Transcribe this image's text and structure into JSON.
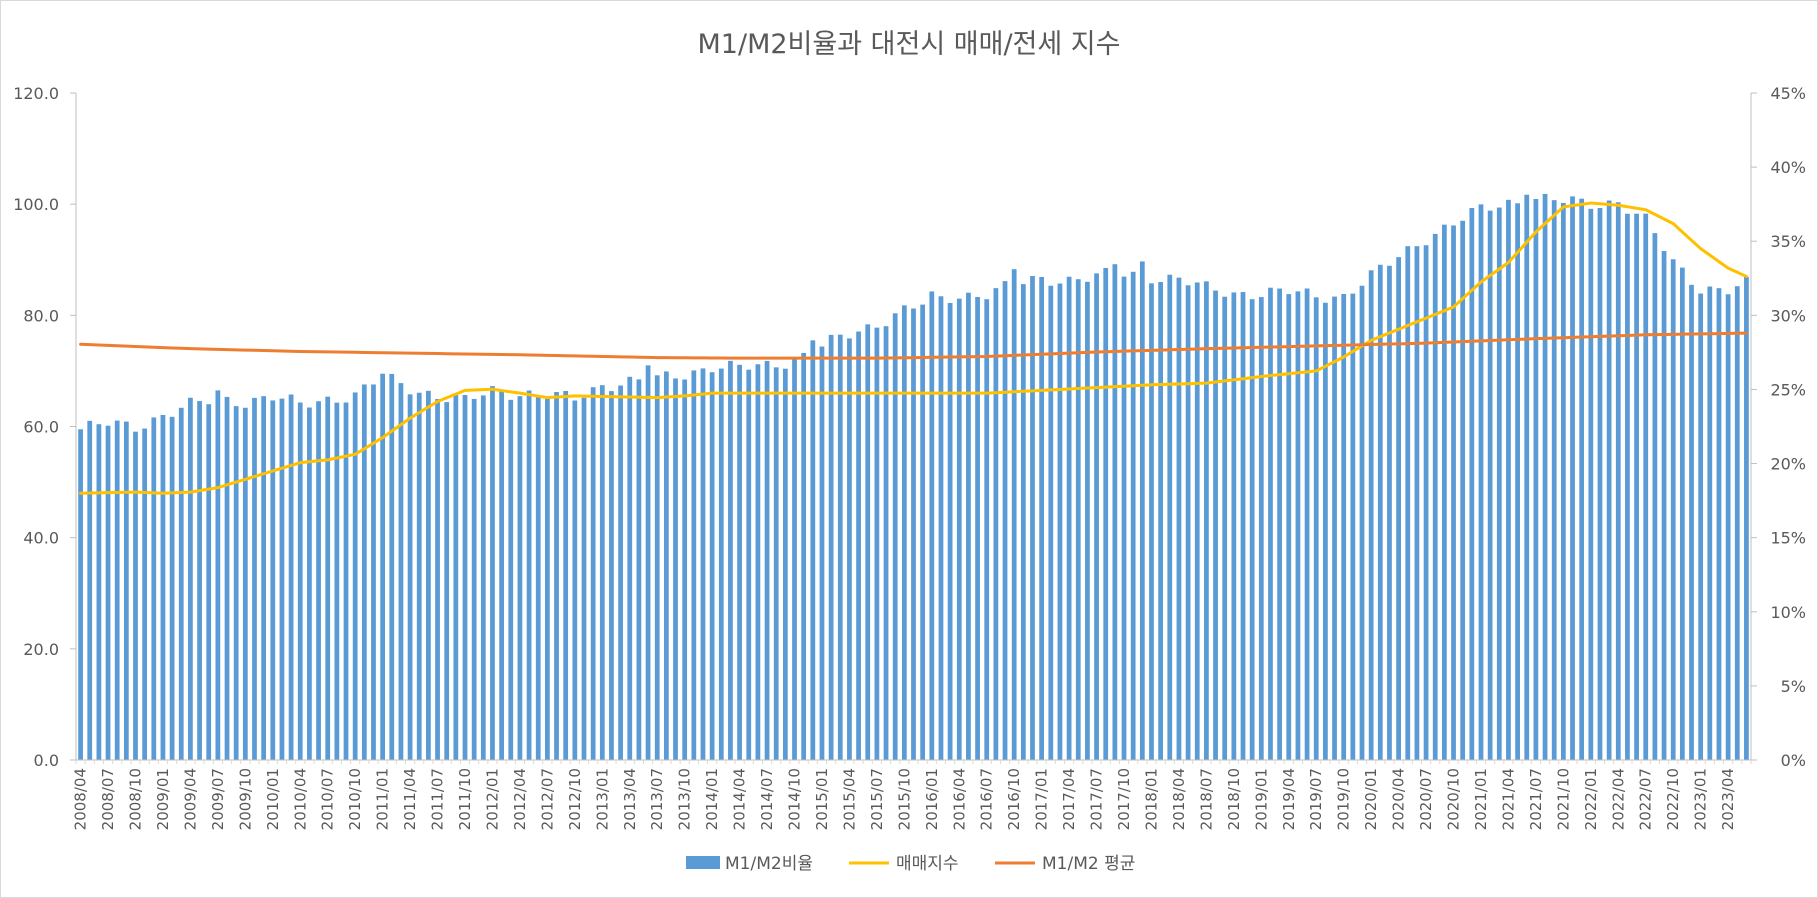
{
  "chart_data": {
    "type": "bar",
    "title": "M1/M2비율과 대전시 매매/전세 지수",
    "y_left": {
      "min": 0,
      "max": 120,
      "step": 20,
      "ticks": [
        "0.0",
        "20.0",
        "40.0",
        "60.0",
        "80.0",
        "100.0",
        "120.0"
      ]
    },
    "y_right": {
      "min": 0,
      "max": 0.45,
      "step": 0.05,
      "ticks": [
        "0%",
        "5%",
        "10%",
        "15%",
        "20%",
        "25%",
        "30%",
        "35%",
        "40%",
        "45%"
      ]
    },
    "x_start": "2008/04",
    "x_end": "2023/06",
    "x_tick_every_months": 3,
    "x_ticks": [
      "2008/04",
      "2008/07",
      "2008/10",
      "2009/01",
      "2009/04",
      "2009/07",
      "2009/10",
      "2010/01",
      "2010/04",
      "2010/07",
      "2010/10",
      "2011/01",
      "2011/04",
      "2011/07",
      "2011/10",
      "2012/01",
      "2012/04",
      "2012/07",
      "2012/10",
      "2013/01",
      "2013/04",
      "2013/07",
      "2013/10",
      "2014/01",
      "2014/04",
      "2014/07",
      "2014/10",
      "2015/01",
      "2015/04",
      "2015/07",
      "2015/10",
      "2016/01",
      "2016/04",
      "2016/07",
      "2016/10",
      "2017/01",
      "2017/04",
      "2017/07",
      "2017/10",
      "2018/01",
      "2018/04",
      "2018/07",
      "2018/10",
      "2019/01",
      "2019/04",
      "2019/07",
      "2019/10",
      "2020/01",
      "2020/04",
      "2020/07",
      "2020/10",
      "2021/01",
      "2021/04",
      "2021/07",
      "2021/10",
      "2022/01",
      "2022/04",
      "2022/07",
      "2022/10",
      "2023/01",
      "2023/04"
    ],
    "series": [
      {
        "name": "M1/M2비율",
        "kind": "bar",
        "axis": "left",
        "color": "#5b9bd5",
        "anchors": [
          [
            "2008/04",
            59.5
          ],
          [
            "2008/07",
            60.5
          ],
          [
            "2008/10",
            60.0
          ],
          [
            "2009/01",
            62.0
          ],
          [
            "2009/04",
            63.8
          ],
          [
            "2009/07",
            65.0
          ],
          [
            "2009/10",
            64.5
          ],
          [
            "2010/01",
            65.2
          ],
          [
            "2010/04",
            64.0
          ],
          [
            "2010/07",
            65.0
          ],
          [
            "2010/10",
            65.5
          ],
          [
            "2011/01",
            69.0
          ],
          [
            "2011/04",
            67.0
          ],
          [
            "2011/07",
            65.5
          ],
          [
            "2011/10",
            64.5
          ],
          [
            "2012/01",
            66.5
          ],
          [
            "2012/04",
            66.0
          ],
          [
            "2012/07",
            65.5
          ],
          [
            "2012/10",
            65.0
          ],
          [
            "2013/01",
            67.5
          ],
          [
            "2013/04",
            68.0
          ],
          [
            "2013/07",
            68.5
          ],
          [
            "2013/10",
            69.5
          ],
          [
            "2014/01",
            70.8
          ],
          [
            "2014/04",
            70.5
          ],
          [
            "2014/07",
            71.0
          ],
          [
            "2014/10",
            72.0
          ],
          [
            "2015/01",
            74.5
          ],
          [
            "2015/04",
            76.5
          ],
          [
            "2015/07",
            78.5
          ],
          [
            "2015/10",
            81.0
          ],
          [
            "2016/01",
            82.5
          ],
          [
            "2016/04",
            83.5
          ],
          [
            "2016/07",
            84.0
          ],
          [
            "2016/10",
            85.5
          ],
          [
            "2017/01",
            86.5
          ],
          [
            "2017/04",
            86.5
          ],
          [
            "2017/07",
            87.0
          ],
          [
            "2017/10",
            87.5
          ],
          [
            "2018/01",
            87.0
          ],
          [
            "2018/04",
            86.5
          ],
          [
            "2018/07",
            84.8
          ],
          [
            "2018/10",
            84.0
          ],
          [
            "2019/01",
            84.0
          ],
          [
            "2019/04",
            84.2
          ],
          [
            "2019/07",
            83.5
          ],
          [
            "2019/10",
            83.5
          ],
          [
            "2020/01",
            87.0
          ],
          [
            "2020/04",
            90.5
          ],
          [
            "2020/07",
            94.0
          ],
          [
            "2020/10",
            96.5
          ],
          [
            "2021/01",
            99.0
          ],
          [
            "2021/04",
            100.3
          ],
          [
            "2021/07",
            101.0
          ],
          [
            "2021/10",
            100.5
          ],
          [
            "2022/01",
            100.0
          ],
          [
            "2022/04",
            100.5
          ],
          [
            "2022/07",
            97.0
          ],
          [
            "2022/10",
            89.5
          ],
          [
            "2023/01",
            85.0
          ],
          [
            "2023/04",
            84.5
          ],
          [
            "2023/06",
            85.5
          ]
        ],
        "spikes": [
          [
            "2009/07",
            66.5
          ],
          [
            "2011/01",
            69.5
          ],
          [
            "2013/06",
            71.0
          ],
          [
            "2014/12",
            75.5
          ],
          [
            "2016/01",
            84.3
          ],
          [
            "2016/10",
            88.3
          ],
          [
            "2017/09",
            89.2
          ],
          [
            "2017/12",
            89.7
          ],
          [
            "2021/06",
            101.7
          ],
          [
            "2021/11",
            101.4
          ]
        ]
      },
      {
        "name": "매매지수",
        "kind": "line",
        "axis": "left",
        "color": "#ffc000",
        "anchors": [
          [
            "2008/04",
            48.0
          ],
          [
            "2008/10",
            48.2
          ],
          [
            "2009/01",
            48.0
          ],
          [
            "2009/04",
            48.2
          ],
          [
            "2009/07",
            49.0
          ],
          [
            "2009/10",
            50.5
          ],
          [
            "2010/01",
            52.0
          ],
          [
            "2010/04",
            53.5
          ],
          [
            "2010/07",
            54.0
          ],
          [
            "2010/10",
            55.0
          ],
          [
            "2011/01",
            58.0
          ],
          [
            "2011/04",
            61.5
          ],
          [
            "2011/07",
            64.5
          ],
          [
            "2011/10",
            66.5
          ],
          [
            "2012/01",
            66.7
          ],
          [
            "2012/04",
            66.0
          ],
          [
            "2012/07",
            65.2
          ],
          [
            "2012/10",
            65.5
          ],
          [
            "2013/01",
            65.4
          ],
          [
            "2013/07",
            65.2
          ],
          [
            "2013/10",
            65.5
          ],
          [
            "2014/01",
            66.0
          ],
          [
            "2014/07",
            66.0
          ],
          [
            "2015/01",
            66.0
          ],
          [
            "2016/01",
            66.0
          ],
          [
            "2016/07",
            66.0
          ],
          [
            "2017/01",
            66.5
          ],
          [
            "2017/07",
            67.0
          ],
          [
            "2018/01",
            67.5
          ],
          [
            "2018/07",
            67.8
          ],
          [
            "2019/01",
            69.0
          ],
          [
            "2019/07",
            70.0
          ],
          [
            "2019/10",
            72.5
          ],
          [
            "2020/01",
            75.5
          ],
          [
            "2020/04",
            77.5
          ],
          [
            "2020/07",
            79.5
          ],
          [
            "2020/10",
            81.5
          ],
          [
            "2021/01",
            86.0
          ],
          [
            "2021/04",
            89.5
          ],
          [
            "2021/07",
            95.0
          ],
          [
            "2021/10",
            99.5
          ],
          [
            "2022/01",
            100.2
          ],
          [
            "2022/04",
            99.8
          ],
          [
            "2022/07",
            99.0
          ],
          [
            "2022/10",
            96.5
          ],
          [
            "2023/01",
            92.0
          ],
          [
            "2023/04",
            88.5
          ],
          [
            "2023/06",
            87.0
          ]
        ]
      },
      {
        "name": "M1/M2 평균",
        "kind": "line",
        "axis": "left",
        "color": "#ed7d31",
        "anchors": [
          [
            "2008/04",
            74.8
          ],
          [
            "2009/04",
            74.0
          ],
          [
            "2010/04",
            73.5
          ],
          [
            "2011/04",
            73.2
          ],
          [
            "2012/04",
            72.9
          ],
          [
            "2013/07",
            72.4
          ],
          [
            "2014/04",
            72.3
          ],
          [
            "2015/07",
            72.3
          ],
          [
            "2016/07",
            72.6
          ],
          [
            "2017/07",
            73.4
          ],
          [
            "2018/07",
            74.0
          ],
          [
            "2019/07",
            74.5
          ],
          [
            "2020/07",
            75.0
          ],
          [
            "2021/07",
            75.8
          ],
          [
            "2022/07",
            76.5
          ],
          [
            "2023/06",
            76.8
          ]
        ]
      }
    ],
    "legend": {
      "position": "bottom",
      "entries": [
        "M1/M2비율",
        "매매지수",
        "M1/M2 평균"
      ]
    },
    "grid": false
  }
}
